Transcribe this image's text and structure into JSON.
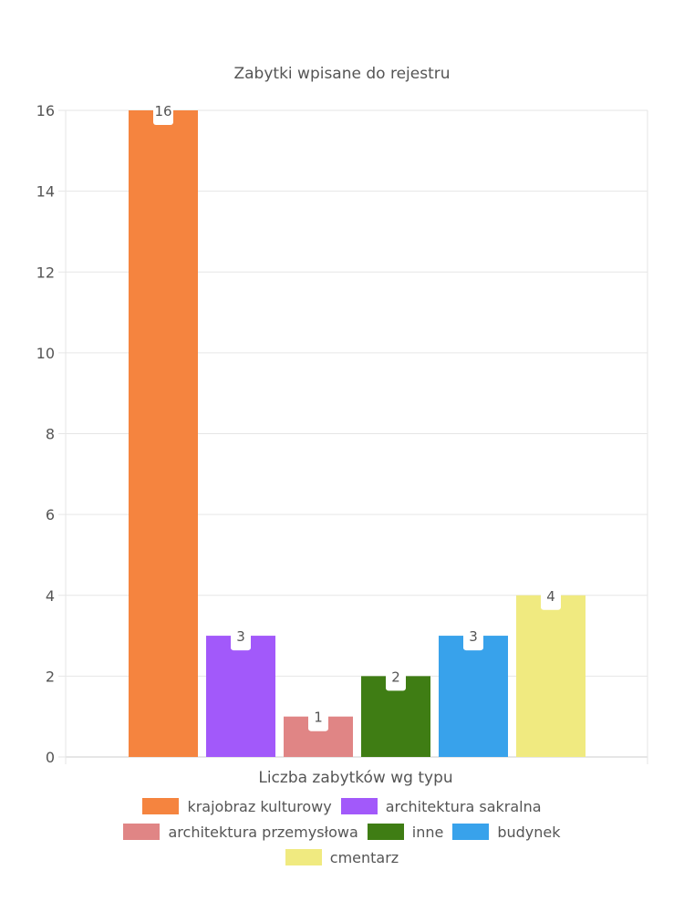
{
  "chart_data": {
    "type": "bar",
    "title": "Zabytki wpisane do rejestru",
    "xlabel": "Liczba zabytków wg typu",
    "ylabel": "",
    "ylim": [
      0,
      16
    ],
    "yticks": [
      0,
      2,
      4,
      6,
      8,
      10,
      12,
      14,
      16
    ],
    "grid": true,
    "legend_position": "bottom",
    "categories": [
      "krajobraz kulturowy",
      "architektura sakralna",
      "architektura przemysłowa",
      "inne",
      "budynek",
      "cmentarz"
    ],
    "values": [
      16,
      3,
      1,
      2,
      3,
      4
    ],
    "colors": [
      "#f5843f",
      "#a259fa",
      "#e08585",
      "#3f7d14",
      "#38a2eb",
      "#f0ea80"
    ]
  }
}
